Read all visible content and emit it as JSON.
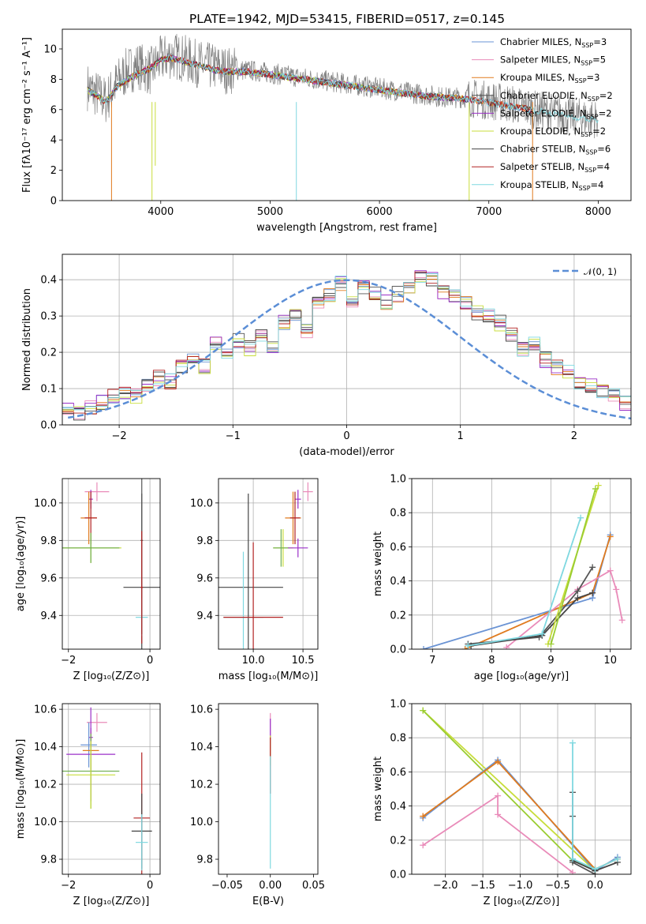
{
  "figure_title": "PLATE=1942, MJD=53415, FIBERID=0517, z=0.145",
  "chart_data": [
    {
      "id": "spectrum",
      "type": "line",
      "xlabel": "wavelength [Angstrom, rest frame]",
      "ylabel": "Flux [fλ10⁻¹⁷ erg cm⁻² s⁻¹ A⁻¹]",
      "xlim": [
        3100,
        8300
      ],
      "ylim": [
        0,
        11.3
      ],
      "xticks": [
        4000,
        5000,
        6000,
        7000,
        8000
      ],
      "yticks": [
        0,
        2,
        4,
        6,
        8,
        10
      ],
      "grid": false,
      "legend_position": "top-right",
      "observed": {
        "color": "#808080",
        "x": [
          3330,
          3400,
          3500,
          3600,
          3700,
          3800,
          3900,
          4000,
          4100,
          4200,
          4300,
          4400,
          4500,
          4600,
          4800,
          5000,
          5200,
          5400,
          5600,
          5800,
          6000,
          6200,
          6400,
          6600,
          6800,
          7000,
          7200,
          7400,
          7600,
          7800,
          8000
        ],
        "y": [
          7.5,
          7.1,
          6.6,
          7.8,
          8.6,
          8.9,
          8.5,
          9.3,
          9.6,
          9.4,
          9.1,
          8.9,
          8.8,
          8.6,
          8.6,
          8.4,
          8.2,
          8.0,
          7.8,
          7.6,
          7.4,
          7.2,
          7.0,
          6.8,
          6.8,
          6.6,
          6.4,
          6.0,
          5.8,
          5.5,
          5.4
        ]
      },
      "models": {
        "x": [
          3330,
          3400,
          3500,
          3600,
          3700,
          3800,
          3900,
          4000,
          4100,
          4200,
          4300,
          4400,
          4500,
          4600,
          4800,
          5000,
          5200,
          5400,
          5600,
          5800,
          6000,
          6200,
          6400,
          6600,
          6800
        ],
        "y": [
          7.3,
          7.0,
          6.5,
          7.5,
          8.0,
          8.4,
          8.7,
          9.3,
          9.4,
          9.2,
          9.0,
          8.8,
          8.6,
          8.5,
          8.5,
          8.3,
          8.1,
          7.9,
          7.7,
          7.5,
          7.3,
          7.1,
          6.9,
          6.8,
          6.7
        ]
      },
      "series": [
        {
          "name": "Chabrier MILES, N",
          "sub": "SSP",
          "suffix": "=3",
          "color": "#6a93d4",
          "xmax": 7400
        },
        {
          "name": "Salpeter MILES, N",
          "sub": "SSP",
          "suffix": "=5",
          "color": "#e98bb9",
          "xmax": 7400
        },
        {
          "name": "Kroupa MILES, N",
          "sub": "SSP",
          "suffix": "=3",
          "color": "#e07b1f",
          "xmax": 7400
        },
        {
          "name": "Chabrier ELODIE, N",
          "sub": "SSP",
          "suffix": "=2",
          "color": "#555555",
          "xmax": 6800
        },
        {
          "name": "Salpeter ELODIE, N",
          "sub": "SSP",
          "suffix": "=2",
          "color": "#9b30c8",
          "xmax": 6800
        },
        {
          "name": "Kroupa ELODIE, N",
          "sub": "SSP",
          "suffix": "=2",
          "color": "#c8dd3b",
          "xmax": 6800
        },
        {
          "name": "Chabrier STELIB, N",
          "sub": "SSP",
          "suffix": "=6",
          "color": "#444444",
          "xmax": 7400
        },
        {
          "name": "Salpeter STELIB, N",
          "sub": "SSP",
          "suffix": "=4",
          "color": "#b22222",
          "xmax": 7400
        },
        {
          "name": "Kroupa STELIB, N",
          "sub": "SSP",
          "suffix": "=4",
          "color": "#7fd8e0",
          "xmax": 8000
        }
      ]
    },
    {
      "id": "residuals",
      "type": "line",
      "xlabel": "(data-model)/error",
      "ylabel": "Normed distribution",
      "xlim": [
        -2.5,
        2.5
      ],
      "ylim": [
        0,
        0.47
      ],
      "xticks": [
        -2,
        -1,
        0,
        1,
        2
      ],
      "yticks": [
        0.0,
        0.1,
        0.2,
        0.3,
        0.4
      ],
      "grid": true,
      "legend_position": "top-right",
      "legend": "𝒩(0, 1)",
      "reference_color": "#5b8ed6",
      "histogram": {
        "bin_width": 0.1,
        "values": [
          0.04,
          0.03,
          0.05,
          0.06,
          0.08,
          0.09,
          0.08,
          0.11,
          0.13,
          0.12,
          0.16,
          0.18,
          0.16,
          0.22,
          0.2,
          0.23,
          0.21,
          0.25,
          0.21,
          0.28,
          0.3,
          0.26,
          0.34,
          0.36,
          0.39,
          0.34,
          0.38,
          0.36,
          0.34,
          0.36,
          0.38,
          0.41,
          0.4,
          0.37,
          0.36,
          0.34,
          0.31,
          0.3,
          0.28,
          0.25,
          0.21,
          0.22,
          0.18,
          0.16,
          0.15,
          0.12,
          0.11,
          0.09,
          0.08,
          0.06
        ]
      }
    },
    {
      "id": "age-vs-Z",
      "type": "scatter",
      "xlabel": "Z [log₁₀(Z/Z⊙)]",
      "ylabel": "age  [log₁₀(age/yr)]",
      "xlim": [
        -2.15,
        0.25
      ],
      "ylim": [
        9.22,
        10.13
      ],
      "xticks": [
        -2,
        0
      ],
      "yticks": [
        9.4,
        9.6,
        9.8,
        10.0
      ],
      "grid": true,
      "points": [
        {
          "x": -1.3,
          "y": 10.06,
          "xerr": 0.3,
          "yerr": 0.05,
          "color": "#e98bb9"
        },
        {
          "x": -1.45,
          "y": 10.02,
          "xerr": 0.05,
          "yerr": 0.05,
          "color": "#9b30c8"
        },
        {
          "x": -1.5,
          "y": 9.92,
          "xerr": 0.2,
          "yerr": 0.14,
          "color": "#e07b1f"
        },
        {
          "x": -1.45,
          "y": 9.92,
          "xerr": 0.15,
          "yerr": 0.14,
          "color": "#b22222"
        },
        {
          "x": -1.45,
          "y": 9.76,
          "xerr": 0.75,
          "yerr": 0.08,
          "color": "#c8dd3b"
        },
        {
          "x": -1.45,
          "y": 9.76,
          "xerr": 0.7,
          "yerr": 0.08,
          "color": "#6fae4f"
        },
        {
          "x": -0.2,
          "y": 9.55,
          "xerr": 0.45,
          "yerr": 0.5,
          "color": "#444444"
        },
        {
          "x": -0.2,
          "y": 9.39,
          "xerr": 0.15,
          "yerr": 0.1,
          "color": "#7fd8e0"
        },
        {
          "x": -0.2,
          "y": 9.8,
          "xerr": 0.03,
          "yerr": 0.5,
          "color": "#555555"
        },
        {
          "x": -0.2,
          "y": 9.55,
          "xerr": 0.03,
          "yerr": 0.3,
          "color": "#b22222"
        }
      ]
    },
    {
      "id": "age-vs-mass",
      "type": "scatter",
      "xlabel": "mass [log₁₀(M/M⊙)]",
      "ylabel": "",
      "xlim": [
        9.65,
        10.65
      ],
      "ylim": [
        9.22,
        10.13
      ],
      "xticks": [
        10.0,
        10.5
      ],
      "yticks": [
        9.4,
        9.6,
        9.8,
        10.0
      ],
      "grid": true,
      "points": [
        {
          "x": 10.55,
          "y": 10.06,
          "xerr": 0.05,
          "yerr": 0.05,
          "color": "#e98bb9"
        },
        {
          "x": 10.45,
          "y": 10.02,
          "xerr": 0.03,
          "yerr": 0.05,
          "color": "#9b30c8"
        },
        {
          "x": 10.4,
          "y": 9.92,
          "xerr": 0.08,
          "yerr": 0.14,
          "color": "#e07b1f"
        },
        {
          "x": 10.42,
          "y": 9.92,
          "xerr": 0.05,
          "yerr": 0.14,
          "color": "#b22222"
        },
        {
          "x": 10.3,
          "y": 9.76,
          "xerr": 0.1,
          "yerr": 0.1,
          "color": "#c8dd3b"
        },
        {
          "x": 10.28,
          "y": 9.76,
          "xerr": 0.08,
          "yerr": 0.1,
          "color": "#6fae4f"
        },
        {
          "x": 10.45,
          "y": 9.76,
          "xerr": 0.1,
          "yerr": 0.05,
          "color": "#9b30c8"
        },
        {
          "x": 9.95,
          "y": 9.55,
          "xerr": 0.35,
          "yerr": 0.5,
          "color": "#444444"
        },
        {
          "x": 9.9,
          "y": 9.39,
          "xerr": 0.2,
          "yerr": 0.35,
          "color": "#7fd8e0"
        },
        {
          "x": 10.0,
          "y": 9.39,
          "xerr": 0.3,
          "yerr": 0.4,
          "color": "#b22222"
        }
      ]
    },
    {
      "id": "weight-vs-age",
      "type": "line",
      "xlabel": "age  [log₁₀(age/yr)]",
      "ylabel": "mass weight",
      "xlim": [
        6.65,
        10.35
      ],
      "ylim": [
        0,
        1.0
      ],
      "xticks": [
        7,
        8,
        9,
        10
      ],
      "yticks": [
        0.0,
        0.2,
        0.4,
        0.6,
        0.8,
        1.0
      ],
      "grid": true,
      "series": [
        {
          "color": "#6a93d4",
          "x": [
            6.85,
            9.7,
            10.0
          ],
          "y": [
            0.0,
            0.3,
            0.67
          ]
        },
        {
          "color": "#e07b1f",
          "x": [
            7.55,
            9.7,
            10.0
          ],
          "y": [
            0.0,
            0.33,
            0.66
          ]
        },
        {
          "color": "#e98bb9",
          "x": [
            8.25,
            9.45,
            10.0,
            10.1,
            10.2
          ],
          "y": [
            0.01,
            0.35,
            0.46,
            0.35,
            0.17
          ]
        },
        {
          "color": "#555555",
          "x": [
            7.6,
            8.8,
            9.45,
            9.7
          ],
          "y": [
            0.03,
            0.07,
            0.34,
            0.48
          ]
        },
        {
          "color": "#444444",
          "x": [
            7.65,
            8.85,
            9.45,
            9.7
          ],
          "y": [
            0.02,
            0.08,
            0.3,
            0.33
          ]
        },
        {
          "color": "#7fd8e0",
          "x": [
            7.6,
            8.85,
            9.5
          ],
          "y": [
            0.02,
            0.09,
            0.77
          ]
        },
        {
          "color": "#c8dd3b",
          "x": [
            8.95,
            9.8
          ],
          "y": [
            0.03,
            0.96
          ]
        },
        {
          "color": "#9acd32",
          "x": [
            9.0,
            9.75
          ],
          "y": [
            0.03,
            0.94
          ]
        }
      ]
    },
    {
      "id": "mass-vs-Z",
      "type": "scatter",
      "xlabel": "Z [log₁₀(Z/Z⊙)]",
      "ylabel": "mass [log₁₀(M/M⊙)]",
      "xlim": [
        -2.15,
        0.25
      ],
      "ylim": [
        9.72,
        10.63
      ],
      "xticks": [
        -2,
        0
      ],
      "yticks": [
        9.8,
        10.0,
        10.2,
        10.4,
        10.6
      ],
      "grid": true,
      "points": [
        {
          "x": -1.3,
          "y": 10.53,
          "xerr": 0.25,
          "yerr": 0.05,
          "color": "#e98bb9"
        },
        {
          "x": -1.45,
          "y": 10.45,
          "xerr": 0.05,
          "yerr": 0.05,
          "color": "#9b30c8"
        },
        {
          "x": -1.5,
          "y": 10.41,
          "xerr": 0.2,
          "yerr": 0.12,
          "color": "#6a93d4"
        },
        {
          "x": -1.45,
          "y": 10.38,
          "xerr": 0.2,
          "yerr": 0.1,
          "color": "#e07b1f"
        },
        {
          "x": -1.45,
          "y": 10.36,
          "xerr": 0.6,
          "yerr": 0.25,
          "color": "#9b30c8"
        },
        {
          "x": -1.45,
          "y": 10.27,
          "xerr": 0.7,
          "yerr": 0.2,
          "color": "#6fae4f"
        },
        {
          "x": -1.45,
          "y": 10.25,
          "xerr": 0.6,
          "yerr": 0.18,
          "color": "#c8dd3b"
        },
        {
          "x": -0.2,
          "y": 10.02,
          "xerr": 0.2,
          "yerr": 0.35,
          "color": "#b22222"
        },
        {
          "x": -0.2,
          "y": 9.95,
          "xerr": 0.25,
          "yerr": 0.2,
          "color": "#444444"
        },
        {
          "x": -0.2,
          "y": 9.89,
          "xerr": 0.15,
          "yerr": 0.15,
          "color": "#7fd8e0"
        }
      ]
    },
    {
      "id": "mass-vs-ebv",
      "type": "scatter",
      "xlabel": "E(B-V)",
      "ylabel": "",
      "xlim": [
        -0.06,
        0.055
      ],
      "ylim": [
        9.72,
        10.63
      ],
      "xticks": [
        -0.05,
        0.0,
        0.05
      ],
      "yticks": [
        9.8,
        10.0,
        10.2,
        10.4,
        10.6
      ],
      "grid": false,
      "points": [
        {
          "x": 0.0,
          "y": 10.5,
          "xerr": 0.0,
          "yerr": 0.08,
          "color": "#e98bb9"
        },
        {
          "x": 0.0,
          "y": 10.45,
          "xerr": 0.0,
          "yerr": 0.1,
          "color": "#9b30c8"
        },
        {
          "x": 0.0,
          "y": 10.38,
          "xerr": 0.0,
          "yerr": 0.08,
          "color": "#c8dd3b"
        },
        {
          "x": 0.0,
          "y": 10.3,
          "xerr": 0.0,
          "yerr": 0.15,
          "color": "#b22222"
        },
        {
          "x": 0.0,
          "y": 10.05,
          "xerr": 0.0,
          "yerr": 0.3,
          "color": "#7fd8e0"
        }
      ]
    },
    {
      "id": "weight-vs-Z",
      "type": "line",
      "xlabel": "Z [log₁₀(Z/Z⊙)]",
      "ylabel": "mass weight",
      "xlim": [
        -2.45,
        0.48
      ],
      "ylim": [
        0,
        1.0
      ],
      "xticks": [
        -2.0,
        -1.5,
        -1.0,
        -0.5,
        0.0
      ],
      "yticks": [
        0.0,
        0.2,
        0.4,
        0.6,
        0.8,
        1.0
      ],
      "grid": true,
      "series": [
        {
          "color": "#c8dd3b",
          "x": [
            -2.3,
            0.0
          ],
          "y": [
            0.96,
            0.02
          ]
        },
        {
          "color": "#9acd32",
          "x": [
            -2.3,
            -0.3,
            0.0
          ],
          "y": [
            0.96,
            0.08,
            0.03
          ]
        },
        {
          "color": "#6a93d4",
          "x": [
            -2.3,
            -1.3,
            0.0,
            0.3
          ],
          "y": [
            0.33,
            0.67,
            0.02,
            0.1
          ]
        },
        {
          "color": "#e07b1f",
          "x": [
            -2.3,
            -1.3,
            0.0,
            0.3
          ],
          "y": [
            0.34,
            0.66,
            0.03,
            0.09
          ]
        },
        {
          "color": "#e98bb9",
          "x": [
            -2.3,
            -1.3,
            -1.3,
            -0.3
          ],
          "y": [
            0.17,
            0.46,
            0.35,
            0.01
          ]
        },
        {
          "color": "#555555",
          "x": [
            -0.3,
            -0.3,
            -0.3,
            0.0
          ],
          "y": [
            0.48,
            0.34,
            0.07,
            0.0
          ]
        },
        {
          "color": "#444444",
          "x": [
            -0.3,
            0.0,
            0.3
          ],
          "y": [
            0.08,
            0.02,
            0.07
          ]
        },
        {
          "color": "#7fd8e0",
          "x": [
            -0.3,
            -0.3,
            0.0,
            0.3
          ],
          "y": [
            0.77,
            0.09,
            0.03,
            0.09
          ]
        }
      ]
    }
  ]
}
